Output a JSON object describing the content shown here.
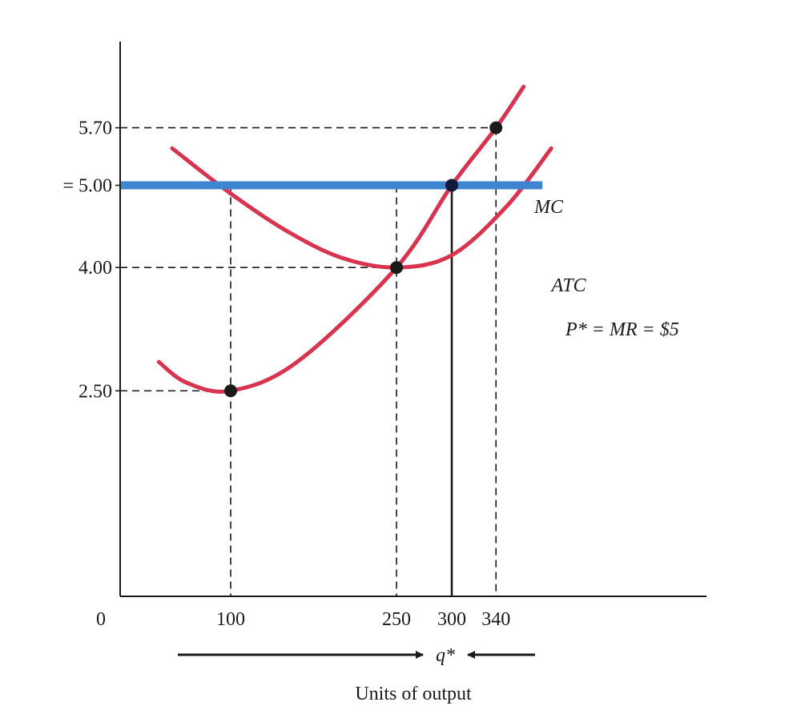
{
  "chart_data": {
    "type": "line",
    "xlabel": "Units of output",
    "origin_label": "0",
    "x_ticks": [
      {
        "value": 100,
        "label": "100"
      },
      {
        "value": 250,
        "label": "250"
      },
      {
        "value": 300,
        "label": "300"
      },
      {
        "value": 340,
        "label": "340"
      }
    ],
    "y_ticks": [
      {
        "value": 5.7,
        "label": "5.70"
      },
      {
        "value": 5.0,
        "label": "= 5.00"
      },
      {
        "value": 4.0,
        "label": "4.00"
      },
      {
        "value": 2.5,
        "label": "2.50"
      }
    ],
    "xlim": [
      0,
      510
    ],
    "ylim": [
      0,
      7.8
    ],
    "grid": false,
    "series": [
      {
        "name": "MC",
        "color": "#d8344f",
        "x": [
          35,
          60,
          100,
          160,
          250,
          300,
          340,
          365
        ],
        "y": [
          2.85,
          2.6,
          2.5,
          2.85,
          4.0,
          5.0,
          5.7,
          6.2
        ]
      },
      {
        "name": "ATC",
        "color": "#d8344f",
        "x": [
          47,
          100,
          150,
          200,
          250,
          300,
          350,
          390
        ],
        "y": [
          5.45,
          4.9,
          4.45,
          4.12,
          4.0,
          4.15,
          4.75,
          5.45
        ]
      },
      {
        "name": "P* = MR = $5",
        "color": "#3d86cf",
        "x": [
          0,
          382
        ],
        "y": [
          5.0,
          5.0
        ]
      }
    ],
    "points": [
      {
        "x": 100,
        "y": 2.5
      },
      {
        "x": 250,
        "y": 4.0
      },
      {
        "x": 300,
        "y": 5.0
      },
      {
        "x": 340,
        "y": 5.7
      }
    ],
    "reference_lines": {
      "horizontal_dashed": [
        {
          "y": 5.7,
          "x_to": 340
        },
        {
          "y": 4.0,
          "x_to": 250
        },
        {
          "y": 2.5,
          "x_to": 100
        }
      ],
      "vertical_dashed": [
        {
          "x": 100,
          "y_to": 5.0
        },
        {
          "x": 250,
          "y_to": 5.0
        },
        {
          "x": 340,
          "y_to": 5.7
        }
      ],
      "vertical_solid": [
        {
          "x": 300,
          "y_to": 5.0
        }
      ]
    },
    "annotations": {
      "mc_label": "MC",
      "atc_label": "ATC",
      "price_label": "P* = MR = $5",
      "q_star": "q*"
    }
  }
}
